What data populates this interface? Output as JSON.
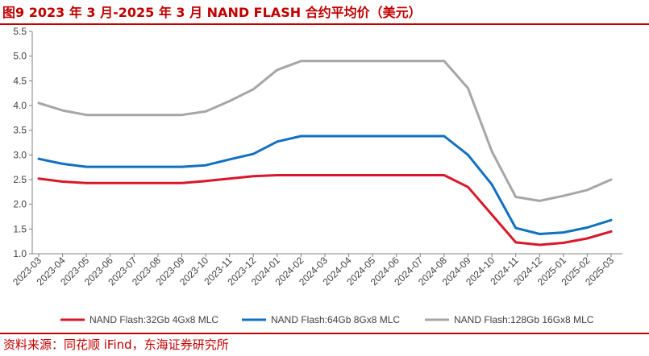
{
  "figure": {
    "title": "图9  2023 年 3 月-2025 年 3 月 NAND FLASH 合约平均价（美元）",
    "source": "资料来源：同花顺 iFind，东海证券研究所"
  },
  "chart_data": {
    "type": "line",
    "title": "",
    "xlabel": "",
    "ylabel": "",
    "ylim": [
      1.0,
      5.5
    ],
    "yticks": [
      "1.0",
      "1.5",
      "2.0",
      "2.5",
      "3.0",
      "3.5",
      "4.0",
      "4.5",
      "5.0",
      "5.5"
    ],
    "grid": false,
    "legend_position": "bottom",
    "categories": [
      "2023-03",
      "2023-04",
      "2023-05",
      "2023-06",
      "2023-07",
      "2023-08",
      "2023-09",
      "2023-10",
      "2023-11",
      "2023-12",
      "2024-01",
      "2024-02",
      "2024-03",
      "2024-04",
      "2024-05",
      "2024-06",
      "2024-07",
      "2024-08",
      "2024-09",
      "2024-10",
      "2024-11",
      "2024-12",
      "2025-01",
      "2025-02",
      "2025-03"
    ],
    "series": [
      {
        "name": "NAND Flash:32Gb 4Gx8 MLC",
        "color": "#d7182a",
        "values": [
          2.52,
          2.46,
          2.43,
          2.43,
          2.43,
          2.43,
          2.43,
          2.47,
          2.52,
          2.57,
          2.59,
          2.59,
          2.59,
          2.59,
          2.59,
          2.59,
          2.59,
          2.59,
          2.35,
          1.79,
          1.23,
          1.18,
          1.22,
          1.31,
          1.45
        ]
      },
      {
        "name": "NAND Flash:64Gb 8Gx8 MLC",
        "color": "#1170c0",
        "values": [
          2.92,
          2.82,
          2.76,
          2.76,
          2.76,
          2.76,
          2.76,
          2.79,
          2.91,
          3.02,
          3.27,
          3.38,
          3.38,
          3.38,
          3.38,
          3.38,
          3.38,
          3.38,
          3.0,
          2.4,
          1.52,
          1.4,
          1.43,
          1.53,
          1.68
        ]
      },
      {
        "name": "NAND Flash:128Gb 16Gx8 MLC",
        "color": "#a6a6a6",
        "values": [
          4.05,
          3.9,
          3.81,
          3.81,
          3.81,
          3.81,
          3.81,
          3.88,
          4.09,
          4.33,
          4.72,
          4.9,
          4.9,
          4.9,
          4.9,
          4.9,
          4.9,
          4.9,
          4.35,
          3.07,
          2.15,
          2.07,
          2.17,
          2.29,
          2.5
        ]
      }
    ]
  }
}
